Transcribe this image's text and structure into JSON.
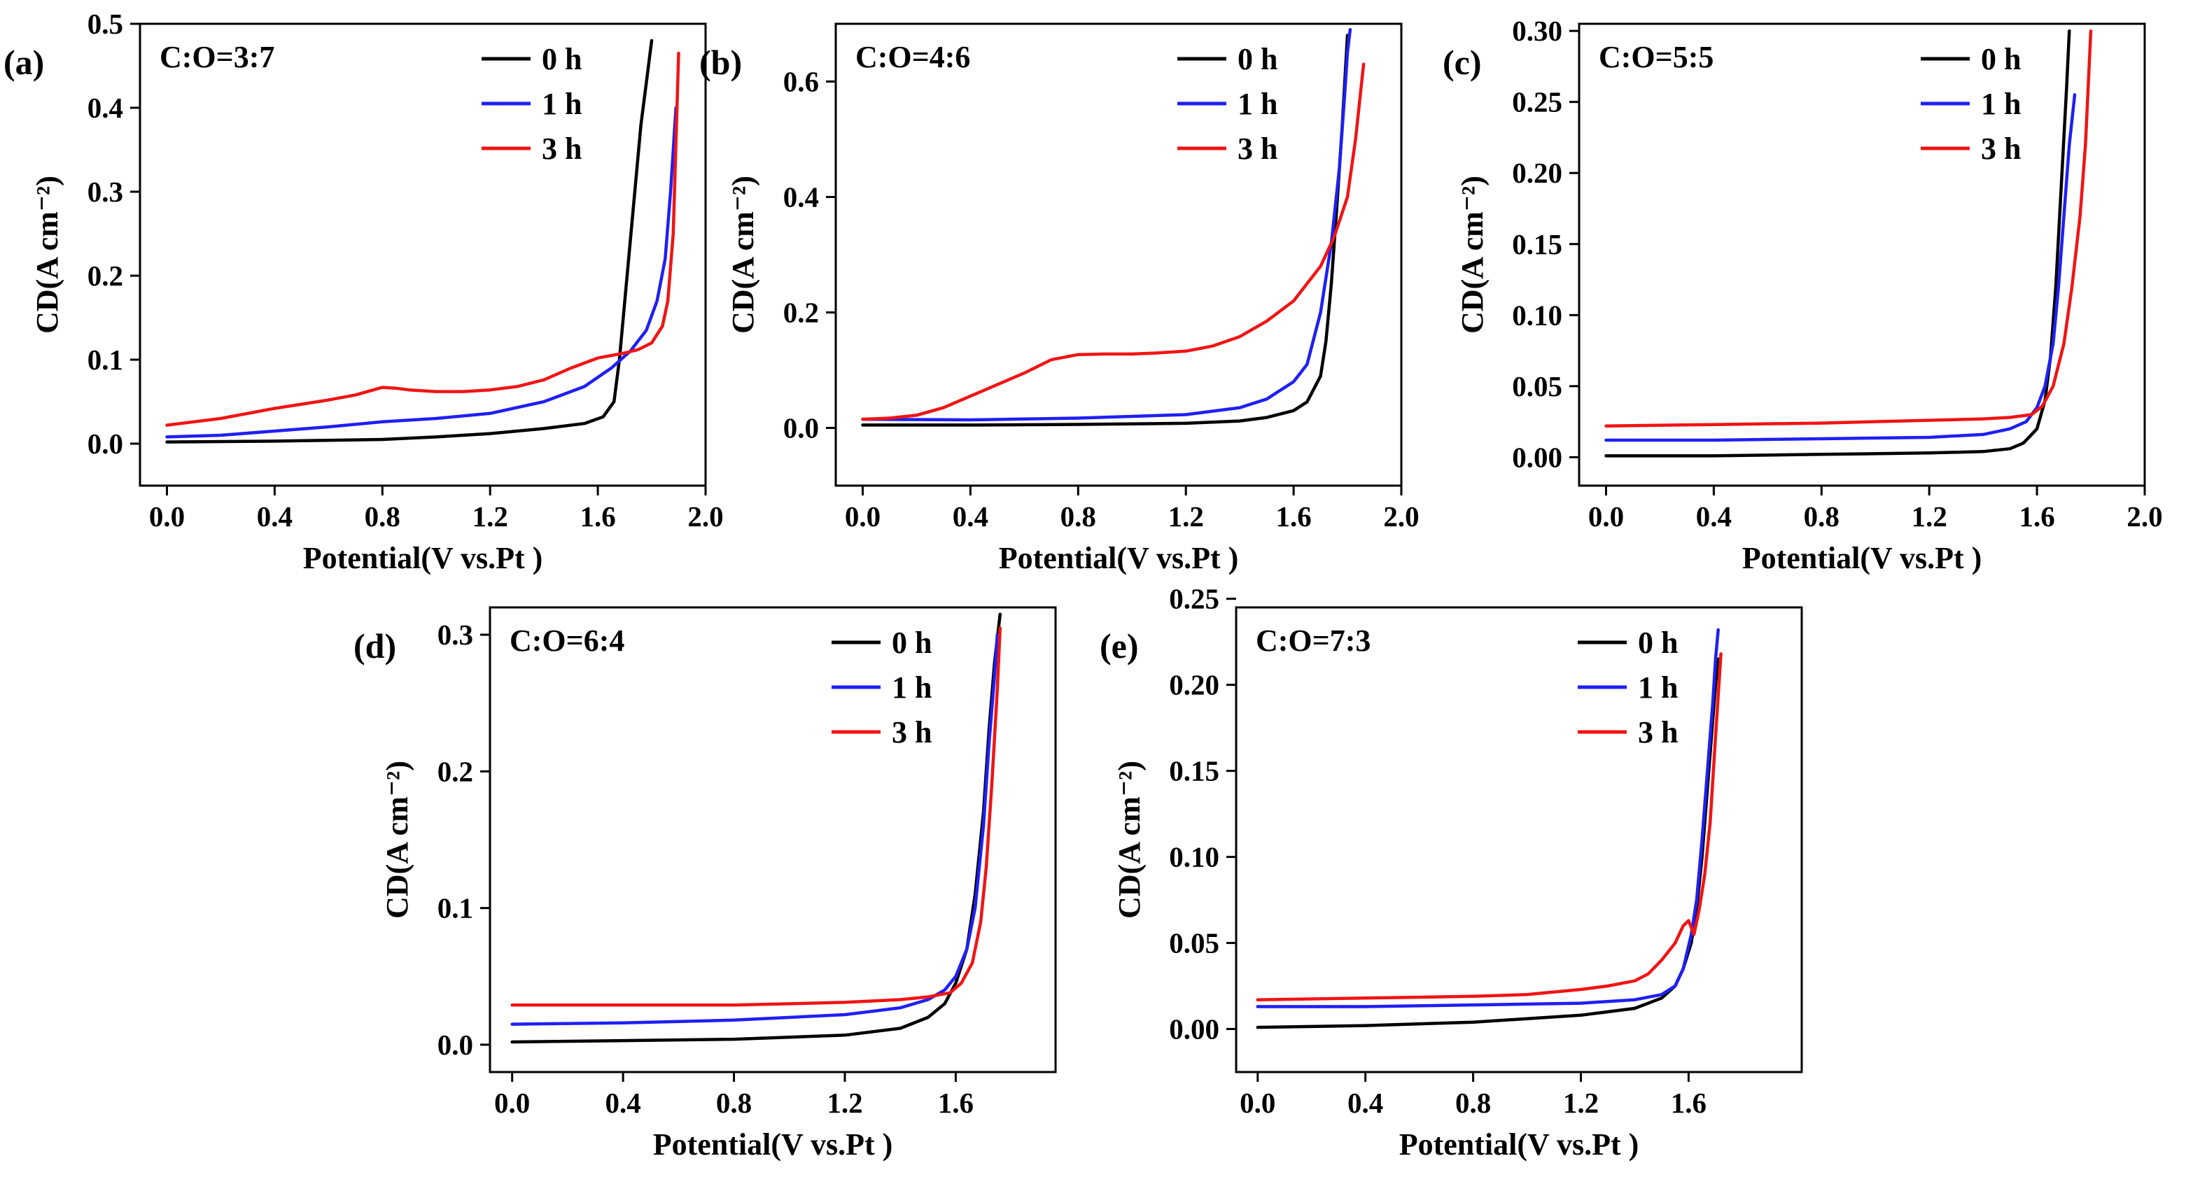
{
  "figure": {
    "legend_order": [
      "0 h",
      "1 h",
      "3 h"
    ],
    "colors": {
      "0 h": "#000000",
      "1 h": "#1f1ff5",
      "3 h": "#f01414"
    }
  },
  "chart_data": [
    {
      "id": "a",
      "panel_label": "(a)",
      "type": "line",
      "title": "C:O=3:7",
      "xlabel": "Potential(V vs.Pt )",
      "ylabel": "CD(A cm⁻²)",
      "xlim": [
        -0.1,
        2.0
      ],
      "ylim": [
        -0.05,
        0.5
      ],
      "xticks": [
        0.0,
        0.4,
        0.8,
        1.2,
        1.6,
        2.0
      ],
      "xtick_labels": [
        "0.0",
        "0.4",
        "0.8",
        "1.2",
        "1.6",
        "2.0"
      ],
      "yticks": [
        0.0,
        0.1,
        0.2,
        0.3,
        0.4,
        0.5
      ],
      "ytick_labels": [
        "0.0",
        "0.1",
        "0.2",
        "0.3",
        "0.4",
        "0.5"
      ],
      "legend": [
        "0 h",
        "1 h",
        "3 h"
      ],
      "series": [
        {
          "name": "0 h",
          "x": [
            0.0,
            0.4,
            0.8,
            1.0,
            1.2,
            1.4,
            1.55,
            1.62,
            1.66,
            1.68,
            1.7,
            1.72,
            1.74,
            1.76,
            1.78,
            1.8
          ],
          "y": [
            0.002,
            0.003,
            0.005,
            0.008,
            0.012,
            0.018,
            0.024,
            0.032,
            0.05,
            0.1,
            0.17,
            0.24,
            0.31,
            0.38,
            0.43,
            0.48
          ]
        },
        {
          "name": "1 h",
          "x": [
            0.0,
            0.2,
            0.4,
            0.6,
            0.8,
            1.0,
            1.2,
            1.4,
            1.55,
            1.65,
            1.72,
            1.78,
            1.82,
            1.85,
            1.87,
            1.89
          ],
          "y": [
            0.008,
            0.01,
            0.015,
            0.02,
            0.026,
            0.03,
            0.036,
            0.05,
            0.068,
            0.09,
            0.11,
            0.135,
            0.17,
            0.22,
            0.3,
            0.4
          ]
        },
        {
          "name": "3 h",
          "x": [
            0.0,
            0.2,
            0.4,
            0.6,
            0.7,
            0.8,
            0.85,
            0.9,
            1.0,
            1.1,
            1.2,
            1.3,
            1.4,
            1.5,
            1.6,
            1.7,
            1.75,
            1.8,
            1.84,
            1.86,
            1.88,
            1.9
          ],
          "y": [
            0.022,
            0.03,
            0.042,
            0.052,
            0.058,
            0.067,
            0.066,
            0.064,
            0.062,
            0.062,
            0.064,
            0.068,
            0.076,
            0.09,
            0.102,
            0.108,
            0.112,
            0.12,
            0.14,
            0.17,
            0.25,
            0.465
          ]
        }
      ]
    },
    {
      "id": "b",
      "panel_label": "(b)",
      "type": "line",
      "title": "C:O=4:6",
      "xlabel": "Potential(V vs.Pt )",
      "ylabel": "CD(A cm⁻²)",
      "xlim": [
        -0.1,
        2.0
      ],
      "ylim": [
        -0.1,
        0.7
      ],
      "xticks": [
        0.0,
        0.4,
        0.8,
        1.2,
        1.6,
        2.0
      ],
      "xtick_labels": [
        "0.0",
        "0.4",
        "0.8",
        "1.2",
        "1.6",
        "2.0"
      ],
      "yticks": [
        0.0,
        0.2,
        0.4,
        0.6
      ],
      "ytick_labels": [
        "0.0",
        "0.2",
        "0.4",
        "0.6"
      ],
      "legend": [
        "0 h",
        "1 h",
        "3 h"
      ],
      "series": [
        {
          "name": "0 h",
          "x": [
            0.0,
            0.4,
            0.8,
            1.2,
            1.4,
            1.5,
            1.6,
            1.65,
            1.7,
            1.72,
            1.74,
            1.76,
            1.78,
            1.8
          ],
          "y": [
            0.005,
            0.005,
            0.006,
            0.008,
            0.012,
            0.018,
            0.03,
            0.045,
            0.09,
            0.15,
            0.25,
            0.38,
            0.52,
            0.68
          ]
        },
        {
          "name": "1 h",
          "x": [
            0.0,
            0.4,
            0.8,
            1.2,
            1.4,
            1.5,
            1.6,
            1.65,
            1.7,
            1.74,
            1.77,
            1.79,
            1.8,
            1.81
          ],
          "y": [
            0.015,
            0.014,
            0.017,
            0.023,
            0.035,
            0.05,
            0.08,
            0.11,
            0.2,
            0.32,
            0.45,
            0.58,
            0.65,
            0.69
          ]
        },
        {
          "name": "3 h",
          "x": [
            0.0,
            0.1,
            0.2,
            0.3,
            0.4,
            0.5,
            0.6,
            0.7,
            0.8,
            0.9,
            1.0,
            1.1,
            1.2,
            1.3,
            1.4,
            1.5,
            1.6,
            1.7,
            1.75,
            1.8,
            1.83,
            1.86
          ],
          "y": [
            0.015,
            0.017,
            0.022,
            0.035,
            0.055,
            0.075,
            0.095,
            0.118,
            0.127,
            0.128,
            0.128,
            0.13,
            0.133,
            0.142,
            0.158,
            0.185,
            0.22,
            0.28,
            0.33,
            0.4,
            0.5,
            0.63
          ]
        }
      ]
    },
    {
      "id": "c",
      "panel_label": "(c)",
      "type": "line",
      "title": "C:O=5:5",
      "xlabel": "Potential(V vs.Pt )",
      "ylabel": "CD(A cm⁻²)",
      "xlim": [
        -0.1,
        2.0
      ],
      "ylim": [
        -0.02,
        0.305
      ],
      "xticks": [
        0.0,
        0.4,
        0.8,
        1.2,
        1.6,
        2.0
      ],
      "xtick_labels": [
        "0.0",
        "0.4",
        "0.8",
        "1.2",
        "1.6",
        "2.0"
      ],
      "yticks": [
        0.0,
        0.05,
        0.1,
        0.15,
        0.2,
        0.25,
        0.3
      ],
      "ytick_labels": [
        "0.00",
        "0.05",
        "0.10",
        "0.15",
        "0.20",
        "0.25",
        "0.30"
      ],
      "legend": [
        "0 h",
        "1 h",
        "3 h"
      ],
      "series": [
        {
          "name": "0 h",
          "x": [
            0.0,
            0.4,
            0.8,
            1.2,
            1.4,
            1.5,
            1.55,
            1.6,
            1.63,
            1.65,
            1.67,
            1.69,
            1.71,
            1.72
          ],
          "y": [
            0.001,
            0.001,
            0.002,
            0.003,
            0.004,
            0.006,
            0.01,
            0.02,
            0.04,
            0.07,
            0.12,
            0.19,
            0.26,
            0.3
          ]
        },
        {
          "name": "1 h",
          "x": [
            0.0,
            0.4,
            0.8,
            1.2,
            1.4,
            1.5,
            1.56,
            1.6,
            1.63,
            1.66,
            1.68,
            1.7,
            1.72,
            1.74
          ],
          "y": [
            0.012,
            0.012,
            0.013,
            0.014,
            0.016,
            0.02,
            0.025,
            0.035,
            0.05,
            0.08,
            0.12,
            0.17,
            0.22,
            0.255
          ]
        },
        {
          "name": "3 h",
          "x": [
            0.0,
            0.4,
            0.8,
            1.2,
            1.4,
            1.5,
            1.58,
            1.62,
            1.66,
            1.7,
            1.73,
            1.76,
            1.78,
            1.8
          ],
          "y": [
            0.022,
            0.023,
            0.024,
            0.026,
            0.027,
            0.028,
            0.03,
            0.036,
            0.05,
            0.08,
            0.12,
            0.17,
            0.22,
            0.3
          ]
        }
      ]
    },
    {
      "id": "d",
      "panel_label": "(d)",
      "type": "line",
      "title": "C:O=6:4",
      "xlabel": "Potential(V vs.Pt )",
      "ylabel": "CD(A cm⁻²)",
      "xlim": [
        -0.08,
        1.96
      ],
      "ylim": [
        -0.02,
        0.32
      ],
      "xticks": [
        0.0,
        0.4,
        0.8,
        1.2,
        1.6
      ],
      "xtick_labels": [
        "0.0",
        "0.4",
        "0.8",
        "1.2",
        "1.6"
      ],
      "yticks": [
        0.0,
        0.1,
        0.2,
        0.3
      ],
      "ytick_labels": [
        "0.0",
        "0.1",
        "0.2",
        "0.3"
      ],
      "legend": [
        "0 h",
        "1 h",
        "3 h"
      ],
      "series": [
        {
          "name": "0 h",
          "x": [
            0.0,
            0.4,
            0.8,
            1.2,
            1.4,
            1.5,
            1.56,
            1.6,
            1.64,
            1.67,
            1.7,
            1.72,
            1.74,
            1.76
          ],
          "y": [
            0.002,
            0.003,
            0.004,
            0.007,
            0.012,
            0.02,
            0.03,
            0.045,
            0.07,
            0.11,
            0.17,
            0.23,
            0.28,
            0.315
          ]
        },
        {
          "name": "1 h",
          "x": [
            0.0,
            0.4,
            0.8,
            1.2,
            1.4,
            1.5,
            1.56,
            1.6,
            1.64,
            1.67,
            1.7,
            1.72,
            1.74,
            1.75
          ],
          "y": [
            0.015,
            0.016,
            0.018,
            0.022,
            0.027,
            0.033,
            0.04,
            0.05,
            0.07,
            0.1,
            0.16,
            0.22,
            0.27,
            0.3
          ]
        },
        {
          "name": "3 h",
          "x": [
            0.0,
            0.4,
            0.8,
            1.2,
            1.4,
            1.5,
            1.58,
            1.62,
            1.66,
            1.69,
            1.71,
            1.73,
            1.75,
            1.76
          ],
          "y": [
            0.029,
            0.029,
            0.029,
            0.031,
            0.033,
            0.035,
            0.038,
            0.045,
            0.06,
            0.09,
            0.13,
            0.19,
            0.26,
            0.305
          ]
        }
      ]
    },
    {
      "id": "e",
      "panel_label": "(e)",
      "type": "line",
      "title": "C:O=7:3",
      "xlabel": "Potential(V vs.Pt )",
      "ylabel": "CD(A cm⁻²)",
      "xlim": [
        -0.08,
        2.02
      ],
      "ylim": [
        -0.025,
        0.245
      ],
      "xticks": [
        0.0,
        0.4,
        0.8,
        1.2,
        1.6
      ],
      "xtick_labels": [
        "0.0",
        "0.4",
        "0.8",
        "1.2",
        "1.6"
      ],
      "yticks": [
        0.0,
        0.05,
        0.1,
        0.15,
        0.2,
        0.25
      ],
      "ytick_labels": [
        "0.00",
        "0.05",
        "0.10",
        "0.15",
        "0.20",
        "0.25"
      ],
      "legend": [
        "0 h",
        "1 h",
        "3 h"
      ],
      "series": [
        {
          "name": "0 h",
          "x": [
            0.0,
            0.4,
            0.8,
            1.2,
            1.4,
            1.5,
            1.55,
            1.58,
            1.61,
            1.63,
            1.65,
            1.67,
            1.69,
            1.7,
            1.71
          ],
          "y": [
            0.001,
            0.002,
            0.004,
            0.008,
            0.012,
            0.018,
            0.025,
            0.035,
            0.05,
            0.07,
            0.1,
            0.14,
            0.18,
            0.2,
            0.215
          ]
        },
        {
          "name": "1 h",
          "x": [
            0.0,
            0.4,
            0.8,
            1.2,
            1.4,
            1.5,
            1.55,
            1.58,
            1.61,
            1.63,
            1.65,
            1.67,
            1.69,
            1.7,
            1.71
          ],
          "y": [
            0.013,
            0.013,
            0.014,
            0.015,
            0.017,
            0.02,
            0.025,
            0.035,
            0.055,
            0.075,
            0.11,
            0.15,
            0.19,
            0.215,
            0.232
          ]
        },
        {
          "name": "3 h",
          "x": [
            0.0,
            0.4,
            0.8,
            1.0,
            1.2,
            1.3,
            1.4,
            1.45,
            1.5,
            1.55,
            1.58,
            1.6,
            1.62,
            1.64,
            1.66,
            1.68,
            1.7,
            1.72
          ],
          "y": [
            0.017,
            0.018,
            0.019,
            0.02,
            0.023,
            0.025,
            0.028,
            0.032,
            0.04,
            0.05,
            0.06,
            0.063,
            0.055,
            0.07,
            0.09,
            0.12,
            0.17,
            0.218
          ]
        }
      ]
    }
  ]
}
